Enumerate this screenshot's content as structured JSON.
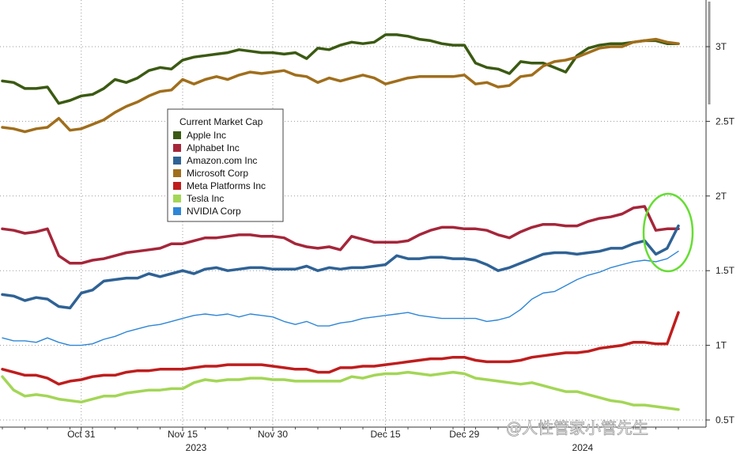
{
  "chart_data": {
    "type": "line",
    "title": "",
    "legend_title": "Current Market Cap",
    "legend_position": "center-left",
    "ylabel": "",
    "xlabel": "",
    "x_year_labels": [
      "2023",
      "2024"
    ],
    "ylim": [
      0.45,
      3.4
    ],
    "yticks": [
      {
        "value": 0.5,
        "label": "0.5T"
      },
      {
        "value": 1.0,
        "label": "1T"
      },
      {
        "value": 1.5,
        "label": "1.5T"
      },
      {
        "value": 2.0,
        "label": "2T"
      },
      {
        "value": 2.5,
        "label": "2.5T"
      },
      {
        "value": 3.0,
        "label": "3T"
      }
    ],
    "xlim": [
      0,
      61
    ],
    "xticks": [
      {
        "index": 7,
        "label": "Oct 31"
      },
      {
        "index": 16,
        "label": "Nov 15"
      },
      {
        "index": 24,
        "label": "Nov 30"
      },
      {
        "index": 34,
        "label": "Dec 15"
      },
      {
        "index": 41,
        "label": "Dec 29"
      }
    ],
    "series": [
      {
        "name": "Apple Inc",
        "color": "#3b5a12",
        "width": 3.5,
        "values": [
          2.77,
          2.76,
          2.72,
          2.72,
          2.73,
          2.62,
          2.64,
          2.67,
          2.68,
          2.72,
          2.78,
          2.76,
          2.79,
          2.84,
          2.86,
          2.85,
          2.91,
          2.93,
          2.94,
          2.95,
          2.96,
          2.98,
          2.97,
          2.96,
          2.96,
          2.95,
          2.96,
          2.92,
          2.99,
          2.98,
          3.01,
          3.03,
          3.02,
          3.03,
          3.08,
          3.08,
          3.07,
          3.05,
          3.04,
          3.02,
          3.01,
          3.01,
          2.89,
          2.86,
          2.85,
          2.82,
          2.9,
          2.89,
          2.89,
          2.86,
          2.83,
          2.94,
          2.99,
          3.01,
          3.02,
          3.02,
          3.03,
          3.04,
          3.04,
          3.02,
          3.02
        ]
      },
      {
        "name": "Alphabet Inc",
        "color": "#a5263a",
        "width": 3.5,
        "values": [
          1.78,
          1.77,
          1.75,
          1.76,
          1.78,
          1.6,
          1.55,
          1.55,
          1.57,
          1.58,
          1.6,
          1.62,
          1.63,
          1.64,
          1.65,
          1.68,
          1.68,
          1.7,
          1.72,
          1.72,
          1.73,
          1.74,
          1.74,
          1.73,
          1.73,
          1.72,
          1.68,
          1.66,
          1.65,
          1.66,
          1.64,
          1.73,
          1.71,
          1.69,
          1.69,
          1.69,
          1.7,
          1.74,
          1.77,
          1.79,
          1.79,
          1.78,
          1.78,
          1.77,
          1.74,
          1.72,
          1.76,
          1.79,
          1.81,
          1.81,
          1.8,
          1.8,
          1.83,
          1.85,
          1.86,
          1.88,
          1.92,
          1.93,
          1.77,
          1.78,
          1.78
        ]
      },
      {
        "name": "Amazon.com Inc",
        "color": "#2f6295",
        "width": 3.5,
        "values": [
          1.34,
          1.33,
          1.3,
          1.32,
          1.31,
          1.26,
          1.25,
          1.35,
          1.37,
          1.43,
          1.44,
          1.45,
          1.45,
          1.48,
          1.46,
          1.48,
          1.5,
          1.48,
          1.51,
          1.52,
          1.5,
          1.51,
          1.52,
          1.52,
          1.51,
          1.51,
          1.51,
          1.53,
          1.5,
          1.52,
          1.51,
          1.52,
          1.52,
          1.53,
          1.54,
          1.6,
          1.58,
          1.58,
          1.59,
          1.59,
          1.58,
          1.58,
          1.57,
          1.54,
          1.5,
          1.52,
          1.55,
          1.58,
          1.61,
          1.62,
          1.62,
          1.61,
          1.62,
          1.63,
          1.65,
          1.65,
          1.68,
          1.7,
          1.61,
          1.65,
          1.8
        ]
      },
      {
        "name": "Microsoft Corp",
        "color": "#a06e1c",
        "width": 3.5,
        "values": [
          2.46,
          2.45,
          2.43,
          2.45,
          2.46,
          2.52,
          2.44,
          2.45,
          2.48,
          2.51,
          2.56,
          2.6,
          2.63,
          2.67,
          2.7,
          2.71,
          2.78,
          2.75,
          2.78,
          2.8,
          2.78,
          2.81,
          2.83,
          2.82,
          2.83,
          2.84,
          2.81,
          2.8,
          2.76,
          2.79,
          2.77,
          2.79,
          2.81,
          2.79,
          2.75,
          2.77,
          2.79,
          2.8,
          2.8,
          2.8,
          2.8,
          2.81,
          2.75,
          2.76,
          2.73,
          2.74,
          2.8,
          2.81,
          2.87,
          2.9,
          2.91,
          2.93,
          2.96,
          2.99,
          3.0,
          3.0,
          3.03,
          3.04,
          3.05,
          3.03,
          3.02
        ]
      },
      {
        "name": "Meta Platforms Inc",
        "color": "#bf1d1d",
        "width": 3.5,
        "values": [
          0.84,
          0.82,
          0.8,
          0.8,
          0.78,
          0.74,
          0.76,
          0.77,
          0.79,
          0.8,
          0.8,
          0.82,
          0.83,
          0.83,
          0.84,
          0.84,
          0.84,
          0.85,
          0.86,
          0.86,
          0.87,
          0.87,
          0.87,
          0.87,
          0.86,
          0.85,
          0.84,
          0.84,
          0.82,
          0.82,
          0.85,
          0.85,
          0.86,
          0.86,
          0.87,
          0.88,
          0.89,
          0.9,
          0.91,
          0.91,
          0.92,
          0.92,
          0.9,
          0.89,
          0.89,
          0.89,
          0.9,
          0.92,
          0.93,
          0.94,
          0.95,
          0.95,
          0.96,
          0.98,
          0.99,
          1.0,
          1.02,
          1.02,
          1.01,
          1.01,
          1.22
        ]
      },
      {
        "name": "Tesla Inc",
        "color": "#a3d656",
        "width": 3.5,
        "values": [
          0.79,
          0.7,
          0.66,
          0.67,
          0.66,
          0.64,
          0.63,
          0.62,
          0.64,
          0.66,
          0.66,
          0.68,
          0.69,
          0.7,
          0.7,
          0.71,
          0.71,
          0.75,
          0.77,
          0.76,
          0.77,
          0.77,
          0.78,
          0.78,
          0.77,
          0.77,
          0.76,
          0.76,
          0.76,
          0.76,
          0.76,
          0.79,
          0.78,
          0.8,
          0.81,
          0.81,
          0.82,
          0.81,
          0.8,
          0.81,
          0.82,
          0.81,
          0.78,
          0.77,
          0.76,
          0.75,
          0.74,
          0.75,
          0.73,
          0.71,
          0.69,
          0.69,
          0.67,
          0.65,
          0.63,
          0.62,
          0.6,
          0.6,
          0.59,
          0.58,
          0.57
        ]
      },
      {
        "name": "NVIDIA Corp",
        "color": "#2d86d6",
        "width": 1.4,
        "values": [
          1.05,
          1.03,
          1.03,
          1.02,
          1.05,
          1.02,
          1.0,
          1.0,
          1.01,
          1.04,
          1.06,
          1.09,
          1.11,
          1.13,
          1.14,
          1.16,
          1.18,
          1.2,
          1.21,
          1.2,
          1.21,
          1.19,
          1.21,
          1.2,
          1.19,
          1.16,
          1.14,
          1.16,
          1.13,
          1.13,
          1.15,
          1.16,
          1.18,
          1.19,
          1.2,
          1.21,
          1.22,
          1.2,
          1.19,
          1.18,
          1.18,
          1.18,
          1.18,
          1.16,
          1.17,
          1.19,
          1.24,
          1.31,
          1.35,
          1.36,
          1.4,
          1.44,
          1.47,
          1.49,
          1.52,
          1.54,
          1.56,
          1.57,
          1.56,
          1.58,
          1.63
        ]
      }
    ],
    "annotations": [
      {
        "type": "ellipse",
        "color": "#66dd33",
        "description": "green circle highlighting the latest move"
      }
    ],
    "watermark": "@人性管家小管先生"
  }
}
